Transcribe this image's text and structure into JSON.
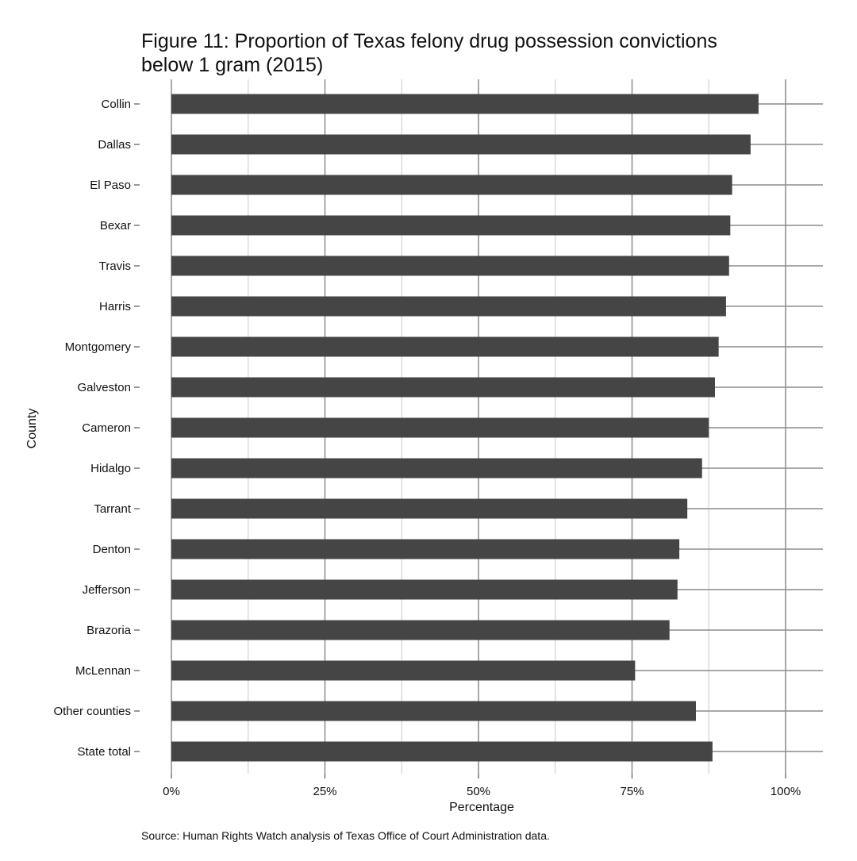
{
  "chart_data": {
    "type": "bar",
    "orientation": "horizontal",
    "title": "Figure 11: Proportion of Texas felony drug possession convictions below 1 gram (2015)",
    "title_lines": [
      "Figure 11: Proportion of Texas felony drug possession convictions",
      "below 1 gram (2015)"
    ],
    "xlabel": "Percentage",
    "ylabel": "County",
    "caption": "Source: Human Rights Watch analysis of Texas Office of Court Administration data.",
    "categories": [
      "Collin",
      "Dallas",
      "El Paso",
      "Bexar",
      "Travis",
      "Harris",
      "Montgomery",
      "Galveston",
      "Cameron",
      "Hidalgo",
      "Tarrant",
      "Denton",
      "Jefferson",
      "Brazoria",
      "McLennan",
      "Other counties",
      "State total"
    ],
    "values": [
      95.6,
      94.3,
      91.3,
      91.0,
      90.8,
      90.3,
      89.1,
      88.5,
      87.5,
      86.4,
      84.0,
      82.7,
      82.4,
      81.1,
      75.5,
      85.4,
      88.1
    ],
    "xlim": [
      0,
      106
    ],
    "xticks": [
      0,
      25,
      50,
      75,
      100
    ],
    "xtick_labels": [
      "0%",
      "25%",
      "50%",
      "75%",
      "100%"
    ],
    "grid": true,
    "bar_color": "#454545",
    "grid_color": "#8c8c8c"
  }
}
